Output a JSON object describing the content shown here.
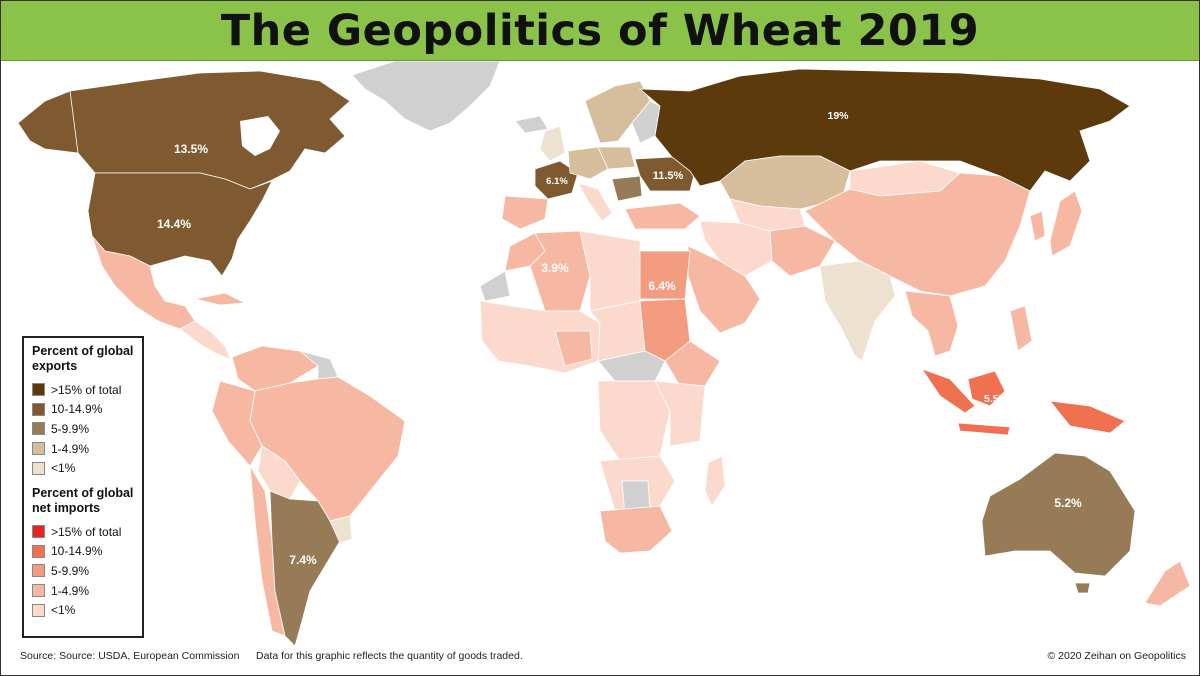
{
  "title": "The Geopolitics of Wheat 2019",
  "colors": {
    "banner": "#8bc34a",
    "ocean": "#ffffff",
    "no_data": "#d0d0d0",
    "exports": {
      "gt15": "#5c3a0c",
      "10_14_9": "#7f5a30",
      "5_9_9": "#977b56",
      "1_4_9": "#d6bd9c",
      "lt1": "#ede1cf"
    },
    "imports": {
      "gt15": "#e52321",
      "10_14_9": "#ef7150",
      "5_9_9": "#f39c80",
      "1_4_9": "#f7b8a3",
      "lt1": "#fcd9cd"
    }
  },
  "map_labels": [
    {
      "country": "Russia",
      "value": "19%",
      "category": "export_gt15"
    },
    {
      "country": "Canada",
      "value": "13.5%",
      "category": "export_10_14_9"
    },
    {
      "country": "United States",
      "value": "14.4%",
      "category": "export_10_14_9"
    },
    {
      "country": "France",
      "value": "6.1%",
      "category": "export_5_9_9"
    },
    {
      "country": "Ukraine",
      "value": "11.5%",
      "category": "export_10_14_9"
    },
    {
      "country": "Algeria",
      "value": "3.9%",
      "category": "import_1_4_9"
    },
    {
      "country": "Egypt",
      "value": "6.4%",
      "category": "import_5_9_9"
    },
    {
      "country": "Indonesia",
      "value": "5.5%",
      "category": "import_5_9_9"
    },
    {
      "country": "Australia",
      "value": "5.2%",
      "category": "export_5_9_9"
    },
    {
      "country": "Argentina",
      "value": "7.4%",
      "category": "export_5_9_9"
    }
  ],
  "legend": {
    "exports_title": "Percent of global exports",
    "exports": [
      ">15% of total",
      "10-14.9%",
      "5-9.9%",
      "1-4.9%",
      "<1%"
    ],
    "imports_title": "Percent of global net imports",
    "imports": [
      ">15% of total",
      "10-14.9%",
      "5-9.9%",
      "1-4.9%",
      "<1%"
    ]
  },
  "footer": {
    "source": "Source: Source: USDA, European Commission",
    "note": "Data for this graphic reflects the quantity of goods traded.",
    "copyright": "© 2020 Zeihan on Geopolitics"
  }
}
